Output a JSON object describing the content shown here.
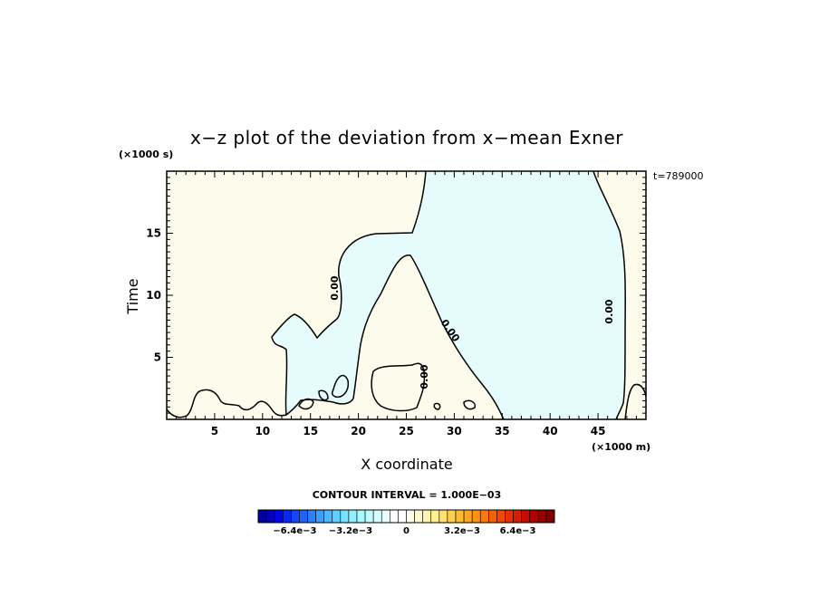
{
  "chart_data": {
    "type": "contour",
    "title": "x−z plot of the deviation from x−mean Exner",
    "xlabel": "X coordinate",
    "ylabel": "Time",
    "x_unit": "(×1000 m)",
    "y_unit": "(×1000 s)",
    "time_label": "t=789000",
    "xlim": [
      0,
      50
    ],
    "ylim": [
      0,
      20
    ],
    "xticks": [
      5,
      10,
      15,
      20,
      25,
      30,
      35,
      40,
      45
    ],
    "yticks": [
      5,
      10,
      15
    ],
    "contour_interval_label": "CONTOUR INTERVAL = 1.000E−03",
    "contour_labels": [
      "0.00",
      "0.00",
      "0.00",
      "0.00"
    ],
    "regions": [
      {
        "sign": "negative",
        "color": "#e6fcfc"
      },
      {
        "sign": "positive",
        "color": "#fdfbeb"
      }
    ],
    "colorbar": {
      "colors": [
        "#0000a0",
        "#0000c8",
        "#0008e6",
        "#0a28f0",
        "#1446f5",
        "#1e64fa",
        "#2882ff",
        "#3aa0ff",
        "#4cb8ff",
        "#62d0ff",
        "#78e2ff",
        "#90f0ff",
        "#a8f8ff",
        "#c0fcff",
        "#d6feff",
        "#eaffff",
        "#ffffff",
        "#ffffff",
        "#fffde8",
        "#fffad0",
        "#fff5b0",
        "#fff090",
        "#ffe070",
        "#ffcf50",
        "#ffbc30",
        "#ffa620",
        "#ff9010",
        "#ff7808",
        "#f86004",
        "#f04802",
        "#e83000",
        "#d81c00",
        "#c80c00",
        "#b00000",
        "#980000",
        "#800000"
      ],
      "tick_labels": [
        "−6.4e−3",
        "−3.2e−3",
        "0",
        "3.2e−3",
        "6.4e−3"
      ],
      "tick_values": [
        -0.0064,
        -0.0032,
        0,
        0.0032,
        0.0064
      ],
      "range": [
        -0.0085,
        0.0085
      ]
    }
  }
}
